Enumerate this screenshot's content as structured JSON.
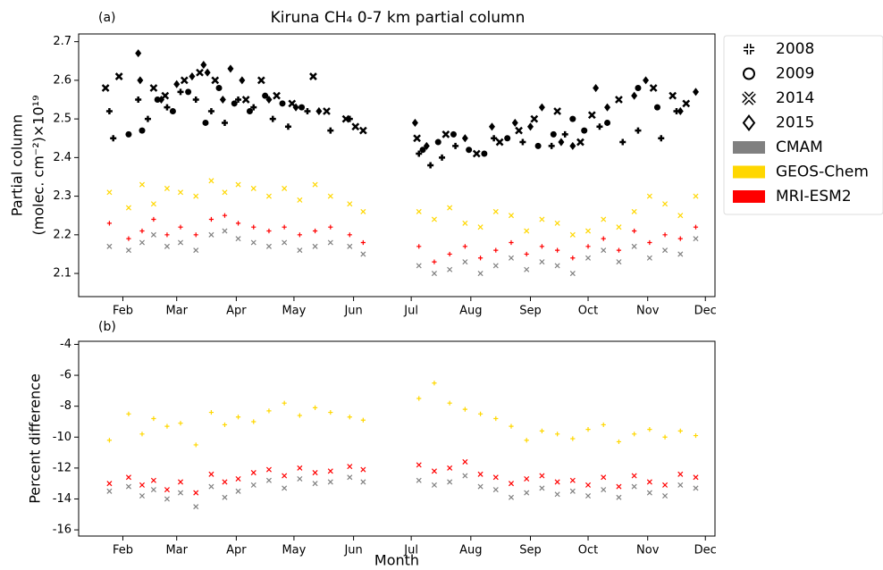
{
  "chart_data": [
    {
      "type": "scatter",
      "title": "Kiruna CH₄ 0-7 km partial column",
      "panel_label": "(a)",
      "ylabel": [
        "Partial column",
        "(molec. cm⁻²)×10¹⁹"
      ],
      "xlim": [
        9,
        340
      ],
      "ylim": [
        2.04,
        2.72
      ],
      "xticks": [
        {
          "value": 32,
          "label": "Feb"
        },
        {
          "value": 60,
          "label": "Mar"
        },
        {
          "value": 91,
          "label": "Apr"
        },
        {
          "value": 121,
          "label": "May"
        },
        {
          "value": 152,
          "label": "Jun"
        },
        {
          "value": 182,
          "label": "Jul"
        },
        {
          "value": 213,
          "label": "Aug"
        },
        {
          "value": 244,
          "label": "Sep"
        },
        {
          "value": 274,
          "label": "Oct"
        },
        {
          "value": 305,
          "label": "Nov"
        },
        {
          "value": 335,
          "label": "Dec"
        }
      ],
      "yticks": [
        2.1,
        2.2,
        2.3,
        2.4,
        2.5,
        2.6,
        2.7
      ],
      "legend": "outside upper right",
      "series": [
        {
          "name": "2008",
          "color": "#000000",
          "marker": "plus",
          "legend_icon": "marker",
          "x": [
            25,
            27,
            40,
            45,
            55,
            62,
            70,
            78,
            85,
            92,
            100,
            110,
            118,
            128,
            140,
            150,
            186,
            192,
            198,
            205,
            225,
            240,
            255,
            262,
            280,
            292,
            300,
            312,
            320
          ],
          "values": [
            2.52,
            2.45,
            2.55,
            2.5,
            2.53,
            2.57,
            2.55,
            2.52,
            2.49,
            2.55,
            2.53,
            2.5,
            2.48,
            2.52,
            2.47,
            2.5,
            2.41,
            2.38,
            2.4,
            2.43,
            2.45,
            2.44,
            2.43,
            2.46,
            2.48,
            2.44,
            2.47,
            2.45,
            2.52
          ]
        },
        {
          "name": "2009",
          "color": "#000000",
          "marker": "circle",
          "legend_icon": "marker",
          "x": [
            35,
            42,
            50,
            58,
            66,
            75,
            82,
            90,
            98,
            106,
            115,
            125,
            188,
            196,
            204,
            212,
            220,
            232,
            248,
            256,
            266,
            272,
            284,
            300,
            310
          ],
          "values": [
            2.46,
            2.47,
            2.55,
            2.52,
            2.57,
            2.49,
            2.58,
            2.54,
            2.52,
            2.56,
            2.54,
            2.53,
            2.42,
            2.44,
            2.46,
            2.42,
            2.41,
            2.45,
            2.43,
            2.46,
            2.5,
            2.47,
            2.49,
            2.58,
            2.53
          ]
        },
        {
          "name": "2014",
          "color": "#000000",
          "marker": "x",
          "legend_icon": "marker",
          "x": [
            23,
            30,
            48,
            54,
            64,
            72,
            80,
            96,
            104,
            112,
            120,
            131,
            138,
            148,
            153,
            157,
            185,
            200,
            216,
            228,
            238,
            246,
            258,
            270,
            276,
            290,
            308,
            318,
            325
          ],
          "values": [
            2.58,
            2.61,
            2.58,
            2.56,
            2.6,
            2.62,
            2.6,
            2.55,
            2.6,
            2.56,
            2.54,
            2.61,
            2.52,
            2.5,
            2.48,
            2.47,
            2.45,
            2.46,
            2.41,
            2.44,
            2.47,
            2.5,
            2.52,
            2.44,
            2.51,
            2.55,
            2.58,
            2.56,
            2.54
          ]
        },
        {
          "name": "2015",
          "color": "#000000",
          "marker": "diamond",
          "legend_icon": "marker",
          "x": [
            40,
            41,
            52,
            60,
            68,
            74,
            76,
            84,
            88,
            94,
            108,
            122,
            134,
            184,
            190,
            210,
            224,
            236,
            244,
            250,
            260,
            266,
            278,
            284,
            298,
            304,
            322,
            330
          ],
          "values": [
            2.67,
            2.6,
            2.55,
            2.59,
            2.61,
            2.64,
            2.62,
            2.55,
            2.63,
            2.6,
            2.55,
            2.53,
            2.52,
            2.49,
            2.43,
            2.45,
            2.48,
            2.49,
            2.48,
            2.53,
            2.44,
            2.43,
            2.58,
            2.53,
            2.56,
            2.6,
            2.52,
            2.57
          ]
        },
        {
          "name": "CMAM",
          "color": "#808080",
          "marker": "x",
          "legend_icon": "patch",
          "x": [
            25,
            35,
            42,
            48,
            55,
            62,
            70,
            78,
            85,
            92,
            100,
            108,
            116,
            124,
            132,
            140,
            150,
            157,
            186,
            194,
            202,
            210,
            218,
            226,
            234,
            242,
            250,
            258,
            266,
            274,
            282,
            290,
            298,
            306,
            314,
            322,
            330
          ],
          "values": [
            2.17,
            2.16,
            2.18,
            2.2,
            2.17,
            2.18,
            2.16,
            2.2,
            2.21,
            2.19,
            2.18,
            2.17,
            2.18,
            2.16,
            2.17,
            2.18,
            2.17,
            2.15,
            2.12,
            2.1,
            2.11,
            2.13,
            2.1,
            2.12,
            2.14,
            2.11,
            2.13,
            2.12,
            2.1,
            2.14,
            2.16,
            2.13,
            2.17,
            2.14,
            2.16,
            2.15,
            2.19
          ]
        },
        {
          "name": "GEOS-Chem",
          "color": "#ffd700",
          "marker": "x",
          "legend_icon": "patch",
          "x": [
            25,
            35,
            42,
            48,
            55,
            62,
            70,
            78,
            85,
            92,
            100,
            108,
            116,
            124,
            132,
            140,
            150,
            157,
            186,
            194,
            202,
            210,
            218,
            226,
            234,
            242,
            250,
            258,
            266,
            274,
            282,
            290,
            298,
            306,
            314,
            322,
            330
          ],
          "values": [
            2.31,
            2.27,
            2.33,
            2.28,
            2.32,
            2.31,
            2.3,
            2.34,
            2.31,
            2.33,
            2.32,
            2.3,
            2.32,
            2.29,
            2.33,
            2.3,
            2.28,
            2.26,
            2.26,
            2.24,
            2.27,
            2.23,
            2.22,
            2.26,
            2.25,
            2.21,
            2.24,
            2.23,
            2.2,
            2.21,
            2.24,
            2.22,
            2.26,
            2.3,
            2.28,
            2.25,
            2.3
          ]
        },
        {
          "name": "MRI-ESM2",
          "color": "#ff0000",
          "marker": "plus",
          "legend_icon": "patch",
          "x": [
            25,
            35,
            42,
            48,
            55,
            62,
            70,
            78,
            85,
            92,
            100,
            108,
            116,
            124,
            132,
            140,
            150,
            157,
            186,
            194,
            202,
            210,
            218,
            226,
            234,
            242,
            250,
            258,
            266,
            274,
            282,
            290,
            298,
            306,
            314,
            322,
            330
          ],
          "values": [
            2.23,
            2.19,
            2.21,
            2.24,
            2.2,
            2.22,
            2.2,
            2.24,
            2.25,
            2.23,
            2.22,
            2.21,
            2.22,
            2.2,
            2.21,
            2.22,
            2.2,
            2.18,
            2.17,
            2.13,
            2.15,
            2.17,
            2.14,
            2.16,
            2.18,
            2.15,
            2.17,
            2.16,
            2.14,
            2.17,
            2.19,
            2.16,
            2.21,
            2.18,
            2.2,
            2.19,
            2.22
          ]
        }
      ]
    },
    {
      "type": "scatter",
      "panel_label": "(b)",
      "ylabel": [
        "Percent difference"
      ],
      "xlabel": "Month",
      "xlim": [
        9,
        340
      ],
      "ylim": [
        -16.4,
        -3.8
      ],
      "xticks": [
        {
          "value": 32,
          "label": "Feb"
        },
        {
          "value": 60,
          "label": "Mar"
        },
        {
          "value": 91,
          "label": "Apr"
        },
        {
          "value": 121,
          "label": "May"
        },
        {
          "value": 152,
          "label": "Jun"
        },
        {
          "value": 182,
          "label": "Jul"
        },
        {
          "value": 213,
          "label": "Aug"
        },
        {
          "value": 244,
          "label": "Sep"
        },
        {
          "value": 274,
          "label": "Oct"
        },
        {
          "value": 305,
          "label": "Nov"
        },
        {
          "value": 335,
          "label": "Dec"
        }
      ],
      "yticks": [
        -16,
        -14,
        -12,
        -10,
        -8,
        -6,
        -4
      ],
      "series": [
        {
          "color": "#808080",
          "marker": "x",
          "x": [
            25,
            35,
            42,
            48,
            55,
            62,
            70,
            78,
            85,
            92,
            100,
            108,
            116,
            124,
            132,
            140,
            150,
            157,
            186,
            194,
            202,
            210,
            218,
            226,
            234,
            242,
            250,
            258,
            266,
            274,
            282,
            290,
            298,
            306,
            314,
            322,
            330
          ],
          "values": [
            -13.5,
            -13.2,
            -13.8,
            -13.4,
            -14,
            -13.6,
            -14.5,
            -13.2,
            -13.9,
            -13.5,
            -13.1,
            -12.8,
            -13.3,
            -12.7,
            -13,
            -12.9,
            -12.6,
            -12.9,
            -12.8,
            -13.1,
            -12.9,
            -12.5,
            -13.2,
            -13.4,
            -13.9,
            -13.6,
            -13.3,
            -13.7,
            -13.5,
            -13.8,
            -13.4,
            -13.9,
            -13.2,
            -13.6,
            -13.8,
            -13.1,
            -13.3
          ]
        },
        {
          "color": "#ffd700",
          "marker": "plus",
          "x": [
            25,
            35,
            42,
            48,
            55,
            62,
            70,
            78,
            85,
            92,
            100,
            108,
            116,
            124,
            132,
            140,
            150,
            157,
            186,
            194,
            202,
            210,
            218,
            226,
            234,
            242,
            250,
            258,
            266,
            274,
            282,
            290,
            298,
            306,
            314,
            322,
            330
          ],
          "values": [
            -10.2,
            -8.5,
            -9.8,
            -8.8,
            -9.3,
            -9.1,
            -10.5,
            -8.4,
            -9.2,
            -8.7,
            -9,
            -8.3,
            -7.8,
            -8.6,
            -8.1,
            -8.4,
            -8.7,
            -8.9,
            -7.5,
            -6.5,
            -7.8,
            -8.2,
            -8.5,
            -8.8,
            -9.3,
            -10.2,
            -9.6,
            -9.8,
            -10.1,
            -9.5,
            -9.2,
            -10.3,
            -9.8,
            -9.5,
            -10,
            -9.6,
            -9.9
          ]
        },
        {
          "color": "#ff0000",
          "marker": "x",
          "x": [
            25,
            35,
            42,
            48,
            55,
            62,
            70,
            78,
            85,
            92,
            100,
            108,
            116,
            124,
            132,
            140,
            150,
            157,
            186,
            194,
            202,
            210,
            218,
            226,
            234,
            242,
            250,
            258,
            266,
            274,
            282,
            290,
            298,
            306,
            314,
            322,
            330
          ],
          "values": [
            -13,
            -12.6,
            -13.1,
            -12.8,
            -13.4,
            -12.9,
            -13.6,
            -12.4,
            -12.9,
            -12.7,
            -12.3,
            -12.1,
            -12.5,
            -12,
            -12.3,
            -12.2,
            -11.9,
            -12.1,
            -11.8,
            -12.2,
            -12,
            -11.6,
            -12.4,
            -12.6,
            -13,
            -12.7,
            -12.5,
            -12.9,
            -12.8,
            -13.1,
            -12.6,
            -13.2,
            -12.5,
            -12.9,
            -13.1,
            -12.4,
            -12.6
          ]
        }
      ]
    }
  ]
}
